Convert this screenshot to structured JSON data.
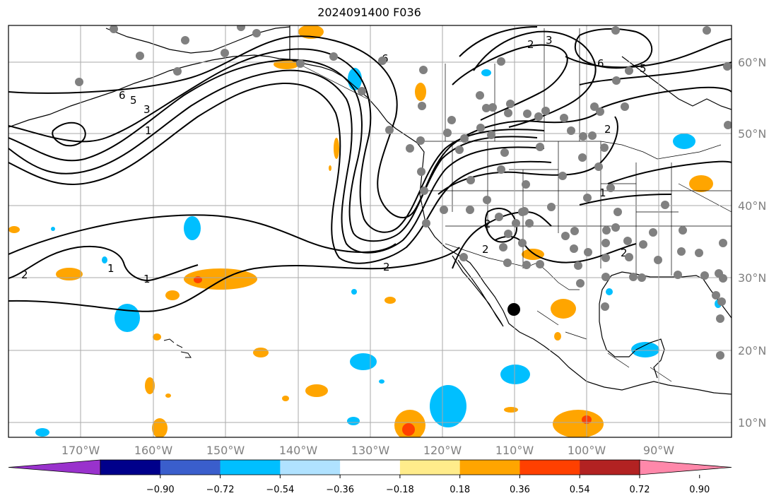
{
  "title": "2024091400 F036",
  "map": {
    "projection": "plate-carree",
    "lon_range": [
      -180,
      -80
    ],
    "lat_range": [
      8,
      65
    ],
    "lon_ticks": [
      "170°W",
      "160°W",
      "150°W",
      "140°W",
      "130°W",
      "120°W",
      "110°W",
      "100°W",
      "90°W"
    ],
    "lat_ticks": [
      "60°N",
      "50°N",
      "40°N",
      "30°N",
      "20°N",
      "10°N"
    ],
    "contour_labels": [
      "6",
      "5",
      "3",
      "1",
      "6",
      "2",
      "3",
      "5",
      "6",
      "2",
      "2",
      "2",
      "1",
      "2",
      "2",
      "1",
      "2",
      "1"
    ],
    "station_marker_color": "#808080",
    "highlight_marker_color": "#000000"
  },
  "colorbar": {
    "colors": [
      "#9932cc",
      "#00008b",
      "#3a5ecc",
      "#00bfff",
      "#b0e2ff",
      "#ffffff",
      "#ffec8b",
      "#ffa500",
      "#ff4000",
      "#b22222",
      "#ff88aa"
    ],
    "tick_labels": [
      "−0.90",
      "−0.72",
      "−0.54",
      "−0.36",
      "−0.18",
      "0.18",
      "0.36",
      "0.54",
      "0.72",
      "0.90"
    ]
  }
}
